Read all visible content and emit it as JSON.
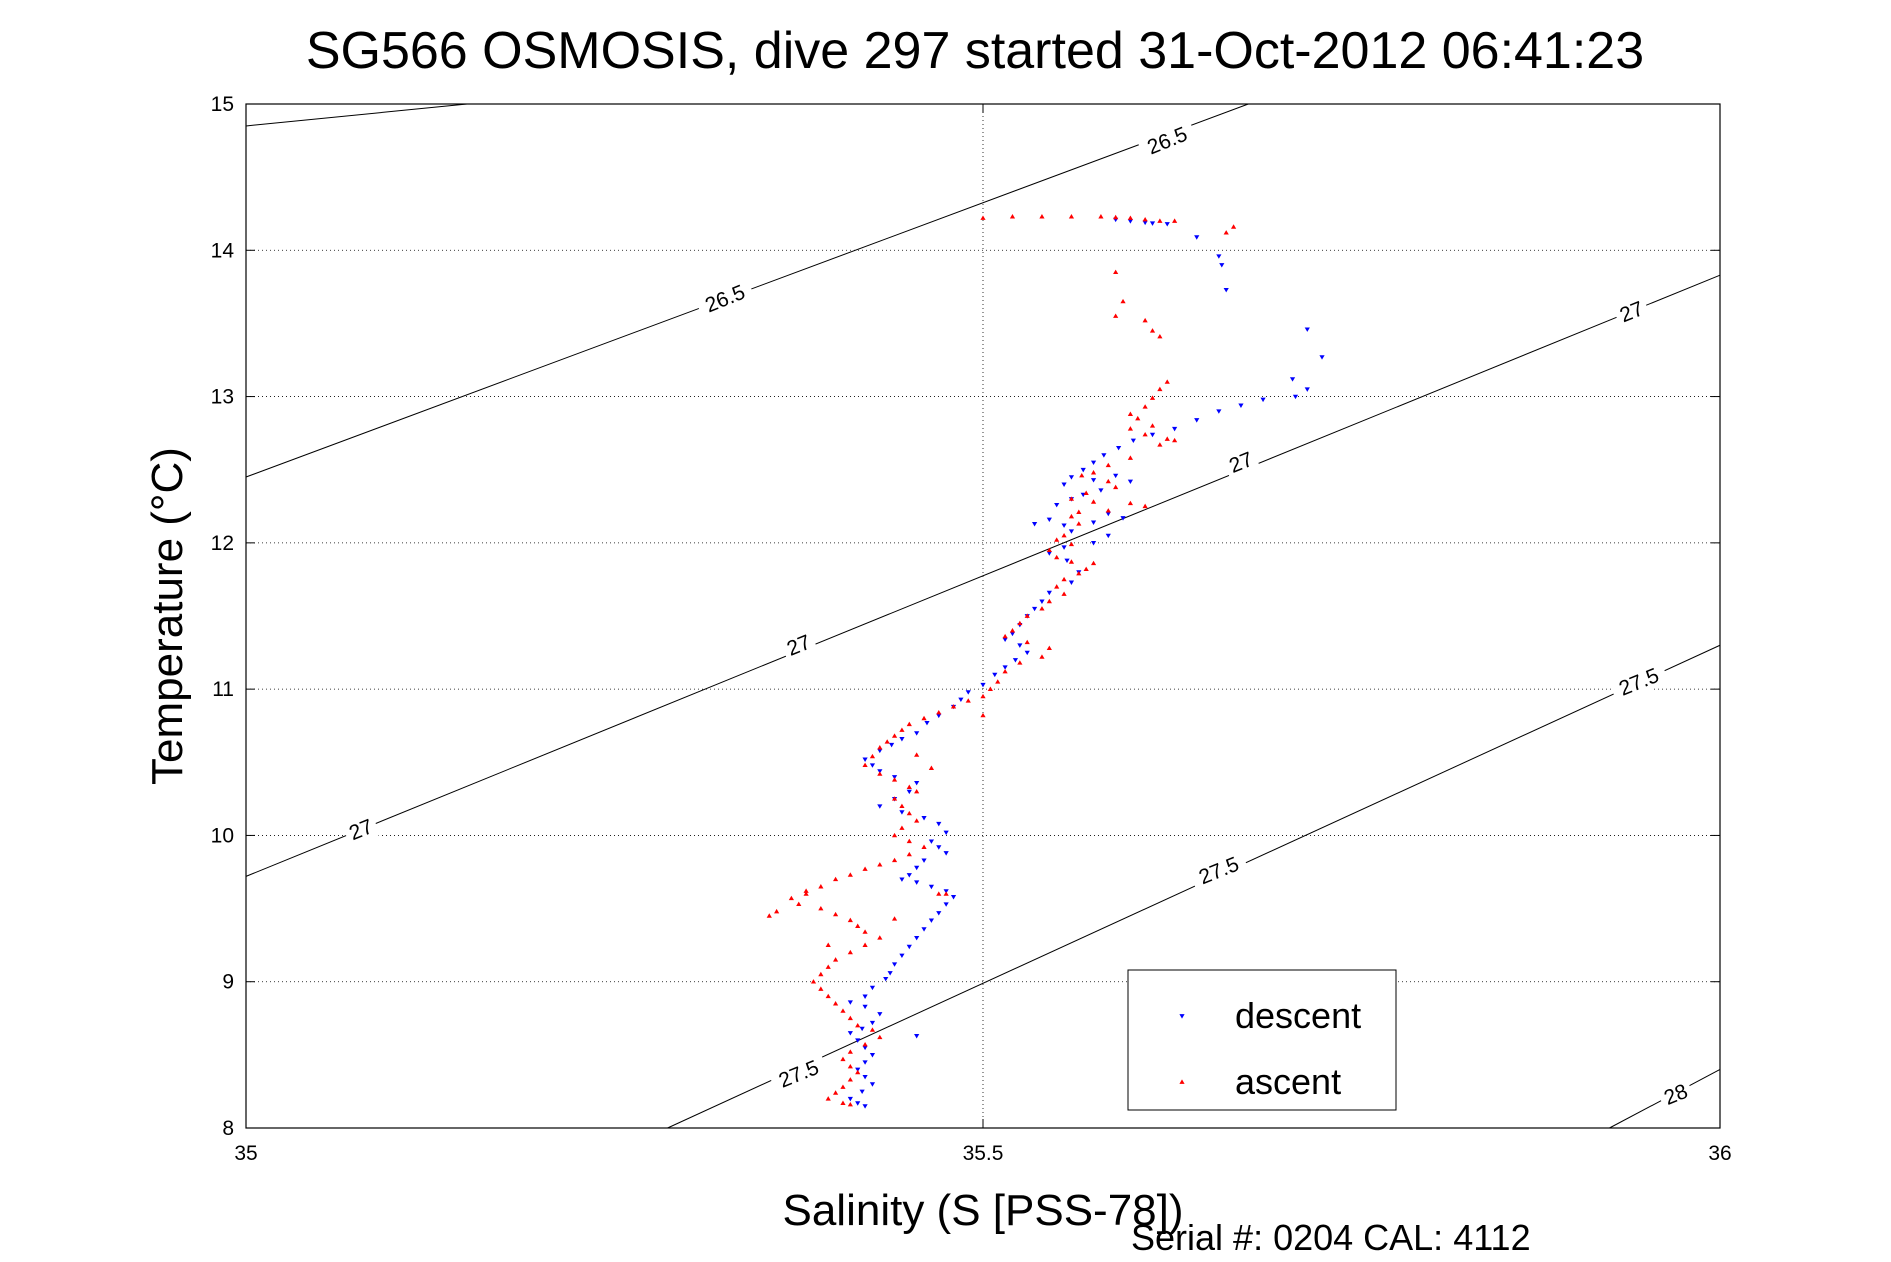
{
  "colors": {
    "descent": "#0000ff",
    "ascent": "#ff0000",
    "axis": "#000000",
    "grid": "#000000",
    "background": "#ffffff"
  },
  "chart_data": {
    "type": "scatter",
    "title": "SG566 OSMOSIS, dive 297 started 31-Oct-2012 06:41:23",
    "xlabel": "Salinity (S [PSS-78])",
    "ylabel": "Temperature (°C)",
    "xlim": [
      35,
      36
    ],
    "ylim": [
      8,
      15
    ],
    "xticks": [
      35,
      35.5,
      36
    ],
    "xtick_labels": [
      "35",
      "35.5",
      "36"
    ],
    "yticks": [
      8,
      9,
      10,
      11,
      12,
      13,
      14,
      15
    ],
    "ytick_labels": [
      "8",
      "9",
      "10",
      "11",
      "12",
      "13",
      "14",
      "15"
    ],
    "grid": true,
    "legend_position": "bottom-right",
    "contours": [
      {
        "label": "26.5",
        "points": [
          [
            35.0,
            14.85
          ],
          [
            35.15,
            15.0
          ]
        ]
      },
      {
        "label": "26.5",
        "points": [
          [
            35.0,
            12.45
          ],
          [
            35.68,
            15.0
          ]
        ]
      },
      {
        "label": "27",
        "points": [
          [
            35.0,
            9.72
          ],
          [
            36.0,
            13.83
          ]
        ]
      },
      {
        "label": "27.5",
        "points": [
          [
            35.286,
            8.0
          ],
          [
            36.0,
            11.3
          ]
        ]
      },
      {
        "label": "28",
        "points": [
          [
            35.925,
            8.0
          ],
          [
            36.0,
            8.4
          ]
        ]
      }
    ],
    "contour_labels": [
      {
        "text": "26.5",
        "x": 35.625,
        "y": 14.75
      },
      {
        "text": "26.5",
        "x": 35.325,
        "y": 13.67
      },
      {
        "text": "27",
        "x": 35.675,
        "y": 12.55
      },
      {
        "text": "27",
        "x": 35.94,
        "y": 13.58
      },
      {
        "text": "27",
        "x": 35.375,
        "y": 11.3
      },
      {
        "text": "27",
        "x": 35.078,
        "y": 10.04
      },
      {
        "text": "27.5",
        "x": 35.945,
        "y": 11.05
      },
      {
        "text": "27.5",
        "x": 35.66,
        "y": 9.76
      },
      {
        "text": "27.5",
        "x": 35.375,
        "y": 8.37
      },
      {
        "text": "28",
        "x": 35.97,
        "y": 8.23
      }
    ],
    "series": [
      {
        "name": "descent",
        "marker": "triangle-down",
        "points": [
          [
            35.59,
            14.21
          ],
          [
            35.6,
            14.2
          ],
          [
            35.61,
            14.19
          ],
          [
            35.615,
            14.185
          ],
          [
            35.625,
            14.18
          ],
          [
            35.645,
            14.09
          ],
          [
            35.66,
            13.96
          ],
          [
            35.662,
            13.9
          ],
          [
            35.665,
            13.73
          ],
          [
            35.72,
            13.46
          ],
          [
            35.73,
            13.27
          ],
          [
            35.71,
            13.12
          ],
          [
            35.712,
            13.0
          ],
          [
            35.72,
            13.05
          ],
          [
            35.69,
            12.98
          ],
          [
            35.675,
            12.94
          ],
          [
            35.66,
            12.9
          ],
          [
            35.645,
            12.84
          ],
          [
            35.63,
            12.78
          ],
          [
            35.615,
            12.74
          ],
          [
            35.602,
            12.7
          ],
          [
            35.592,
            12.65
          ],
          [
            35.582,
            12.6
          ],
          [
            35.575,
            12.55
          ],
          [
            35.568,
            12.5
          ],
          [
            35.56,
            12.45
          ],
          [
            35.555,
            12.4
          ],
          [
            35.575,
            12.43
          ],
          [
            35.59,
            12.46
          ],
          [
            35.6,
            12.42
          ],
          [
            35.58,
            12.36
          ],
          [
            35.568,
            12.33
          ],
          [
            35.56,
            12.3
          ],
          [
            35.55,
            12.26
          ],
          [
            35.585,
            12.2
          ],
          [
            35.595,
            12.17
          ],
          [
            35.575,
            12.14
          ],
          [
            35.555,
            12.12
          ],
          [
            35.545,
            12.16
          ],
          [
            35.535,
            12.13
          ],
          [
            35.56,
            12.08
          ],
          [
            35.585,
            12.05
          ],
          [
            35.575,
            12.0
          ],
          [
            35.555,
            11.97
          ],
          [
            35.545,
            11.93
          ],
          [
            35.557,
            11.88
          ],
          [
            35.565,
            11.8
          ],
          [
            35.56,
            11.73
          ],
          [
            35.545,
            11.66
          ],
          [
            35.54,
            11.6
          ],
          [
            35.535,
            11.55
          ],
          [
            35.53,
            11.5
          ],
          [
            35.525,
            11.44
          ],
          [
            35.52,
            11.38
          ],
          [
            35.515,
            11.34
          ],
          [
            35.525,
            11.3
          ],
          [
            35.53,
            11.25
          ],
          [
            35.522,
            11.2
          ],
          [
            35.515,
            11.15
          ],
          [
            35.508,
            11.1
          ],
          [
            35.5,
            11.03
          ],
          [
            35.49,
            10.98
          ],
          [
            35.485,
            10.93
          ],
          [
            35.48,
            10.88
          ],
          [
            35.47,
            10.82
          ],
          [
            35.462,
            10.77
          ],
          [
            35.455,
            10.7
          ],
          [
            35.445,
            10.66
          ],
          [
            35.438,
            10.62
          ],
          [
            35.43,
            10.58
          ],
          [
            35.42,
            10.52
          ],
          [
            35.425,
            10.48
          ],
          [
            35.43,
            10.44
          ],
          [
            35.44,
            10.4
          ],
          [
            35.455,
            10.36
          ],
          [
            35.45,
            10.3
          ],
          [
            35.44,
            10.25
          ],
          [
            35.43,
            10.2
          ],
          [
            35.445,
            10.16
          ],
          [
            35.46,
            10.12
          ],
          [
            35.47,
            10.08
          ],
          [
            35.475,
            10.02
          ],
          [
            35.465,
            9.96
          ],
          [
            35.47,
            9.92
          ],
          [
            35.475,
            9.88
          ],
          [
            35.46,
            9.83
          ],
          [
            35.455,
            9.78
          ],
          [
            35.45,
            9.73
          ],
          [
            35.445,
            9.7
          ],
          [
            35.455,
            9.68
          ],
          [
            35.465,
            9.65
          ],
          [
            35.475,
            9.62
          ],
          [
            35.48,
            9.58
          ],
          [
            35.475,
            9.53
          ],
          [
            35.47,
            9.47
          ],
          [
            35.465,
            9.42
          ],
          [
            35.46,
            9.36
          ],
          [
            35.455,
            9.3
          ],
          [
            35.45,
            9.24
          ],
          [
            35.445,
            9.18
          ],
          [
            35.44,
            9.12
          ],
          [
            35.437,
            9.06
          ],
          [
            35.434,
            9.02
          ],
          [
            35.425,
            8.96
          ],
          [
            35.42,
            8.9
          ],
          [
            35.41,
            8.86
          ],
          [
            35.42,
            8.83
          ],
          [
            35.43,
            8.78
          ],
          [
            35.425,
            8.72
          ],
          [
            35.418,
            8.68
          ],
          [
            35.41,
            8.65
          ],
          [
            35.415,
            8.6
          ],
          [
            35.42,
            8.55
          ],
          [
            35.425,
            8.5
          ],
          [
            35.42,
            8.45
          ],
          [
            35.415,
            8.4
          ],
          [
            35.42,
            8.35
          ],
          [
            35.425,
            8.3
          ],
          [
            35.418,
            8.25
          ],
          [
            35.41,
            8.2
          ],
          [
            35.415,
            8.17
          ],
          [
            35.42,
            8.15
          ],
          [
            35.455,
            8.63
          ]
        ]
      },
      {
        "name": "ascent",
        "marker": "triangle-up",
        "points": [
          [
            35.5,
            14.22
          ],
          [
            35.52,
            14.23
          ],
          [
            35.54,
            14.23
          ],
          [
            35.56,
            14.23
          ],
          [
            35.58,
            14.23
          ],
          [
            35.59,
            14.225
          ],
          [
            35.6,
            14.22
          ],
          [
            35.61,
            14.21
          ],
          [
            35.62,
            14.2
          ],
          [
            35.63,
            14.2
          ],
          [
            35.67,
            14.16
          ],
          [
            35.665,
            14.12
          ],
          [
            35.59,
            13.85
          ],
          [
            35.595,
            13.65
          ],
          [
            35.59,
            13.55
          ],
          [
            35.61,
            13.52
          ],
          [
            35.615,
            13.45
          ],
          [
            35.62,
            13.41
          ],
          [
            35.625,
            13.1
          ],
          [
            35.62,
            13.05
          ],
          [
            35.615,
            12.99
          ],
          [
            35.61,
            12.93
          ],
          [
            35.6,
            12.88
          ],
          [
            35.605,
            12.85
          ],
          [
            35.615,
            12.8
          ],
          [
            35.6,
            12.78
          ],
          [
            35.61,
            12.74
          ],
          [
            35.625,
            12.71
          ],
          [
            35.63,
            12.7
          ],
          [
            35.62,
            12.67
          ],
          [
            35.6,
            12.58
          ],
          [
            35.585,
            12.53
          ],
          [
            35.575,
            12.48
          ],
          [
            35.567,
            12.46
          ],
          [
            35.585,
            12.42
          ],
          [
            35.59,
            12.38
          ],
          [
            35.57,
            12.34
          ],
          [
            35.56,
            12.3
          ],
          [
            35.575,
            12.28
          ],
          [
            35.6,
            12.27
          ],
          [
            35.61,
            12.25
          ],
          [
            35.585,
            12.22
          ],
          [
            35.565,
            12.21
          ],
          [
            35.56,
            12.18
          ],
          [
            35.565,
            12.13
          ],
          [
            35.555,
            12.05
          ],
          [
            35.55,
            12.02
          ],
          [
            35.56,
            11.99
          ],
          [
            35.545,
            11.95
          ],
          [
            35.55,
            11.9
          ],
          [
            35.56,
            11.87
          ],
          [
            35.575,
            11.86
          ],
          [
            35.57,
            11.82
          ],
          [
            35.565,
            11.79
          ],
          [
            35.555,
            11.75
          ],
          [
            35.55,
            11.7
          ],
          [
            35.555,
            11.65
          ],
          [
            35.545,
            11.6
          ],
          [
            35.54,
            11.55
          ],
          [
            35.53,
            11.5
          ],
          [
            35.525,
            11.45
          ],
          [
            35.52,
            11.4
          ],
          [
            35.515,
            11.36
          ],
          [
            35.53,
            11.32
          ],
          [
            35.545,
            11.28
          ],
          [
            35.54,
            11.22
          ],
          [
            35.525,
            11.18
          ],
          [
            35.515,
            11.12
          ],
          [
            35.51,
            11.05
          ],
          [
            35.505,
            11.0
          ],
          [
            35.5,
            10.95
          ],
          [
            35.49,
            10.92
          ],
          [
            35.48,
            10.88
          ],
          [
            35.47,
            10.84
          ],
          [
            35.46,
            10.8
          ],
          [
            35.45,
            10.76
          ],
          [
            35.445,
            10.72
          ],
          [
            35.44,
            10.68
          ],
          [
            35.435,
            10.64
          ],
          [
            35.43,
            10.6
          ],
          [
            35.425,
            10.54
          ],
          [
            35.42,
            10.48
          ],
          [
            35.43,
            10.42
          ],
          [
            35.44,
            10.38
          ],
          [
            35.45,
            10.33
          ],
          [
            35.455,
            10.3
          ],
          [
            35.44,
            10.25
          ],
          [
            35.445,
            10.2
          ],
          [
            35.45,
            10.15
          ],
          [
            35.455,
            10.1
          ],
          [
            35.445,
            10.05
          ],
          [
            35.44,
            10.0
          ],
          [
            35.45,
            9.96
          ],
          [
            35.46,
            9.92
          ],
          [
            35.45,
            9.87
          ],
          [
            35.44,
            9.83
          ],
          [
            35.43,
            9.8
          ],
          [
            35.42,
            9.77
          ],
          [
            35.41,
            9.73
          ],
          [
            35.4,
            9.7
          ],
          [
            35.39,
            9.65
          ],
          [
            35.38,
            9.6
          ],
          [
            35.37,
            9.57
          ],
          [
            35.375,
            9.53
          ],
          [
            35.39,
            9.5
          ],
          [
            35.4,
            9.46
          ],
          [
            35.41,
            9.42
          ],
          [
            35.415,
            9.38
          ],
          [
            35.42,
            9.34
          ],
          [
            35.43,
            9.3
          ],
          [
            35.42,
            9.25
          ],
          [
            35.41,
            9.2
          ],
          [
            35.4,
            9.15
          ],
          [
            35.395,
            9.1
          ],
          [
            35.39,
            9.05
          ],
          [
            35.385,
            9.0
          ],
          [
            35.39,
            8.95
          ],
          [
            35.395,
            8.9
          ],
          [
            35.4,
            8.85
          ],
          [
            35.405,
            8.8
          ],
          [
            35.41,
            8.75
          ],
          [
            35.415,
            8.7
          ],
          [
            35.425,
            8.67
          ],
          [
            35.43,
            8.62
          ],
          [
            35.42,
            8.57
          ],
          [
            35.41,
            8.52
          ],
          [
            35.405,
            8.47
          ],
          [
            35.41,
            8.42
          ],
          [
            35.415,
            8.38
          ],
          [
            35.41,
            8.33
          ],
          [
            35.405,
            8.28
          ],
          [
            35.4,
            8.24
          ],
          [
            35.395,
            8.2
          ],
          [
            35.405,
            8.17
          ],
          [
            35.41,
            8.16
          ],
          [
            35.38,
            9.62
          ],
          [
            35.36,
            9.48
          ],
          [
            35.355,
            9.45
          ],
          [
            35.395,
            9.25
          ],
          [
            35.44,
            9.43
          ],
          [
            35.47,
            9.6
          ],
          [
            35.475,
            9.6
          ],
          [
            35.465,
            10.46
          ],
          [
            35.5,
            10.82
          ],
          [
            35.455,
            10.55
          ]
        ]
      }
    ],
    "footer": "Serial #: 0204  CAL: 4112"
  }
}
